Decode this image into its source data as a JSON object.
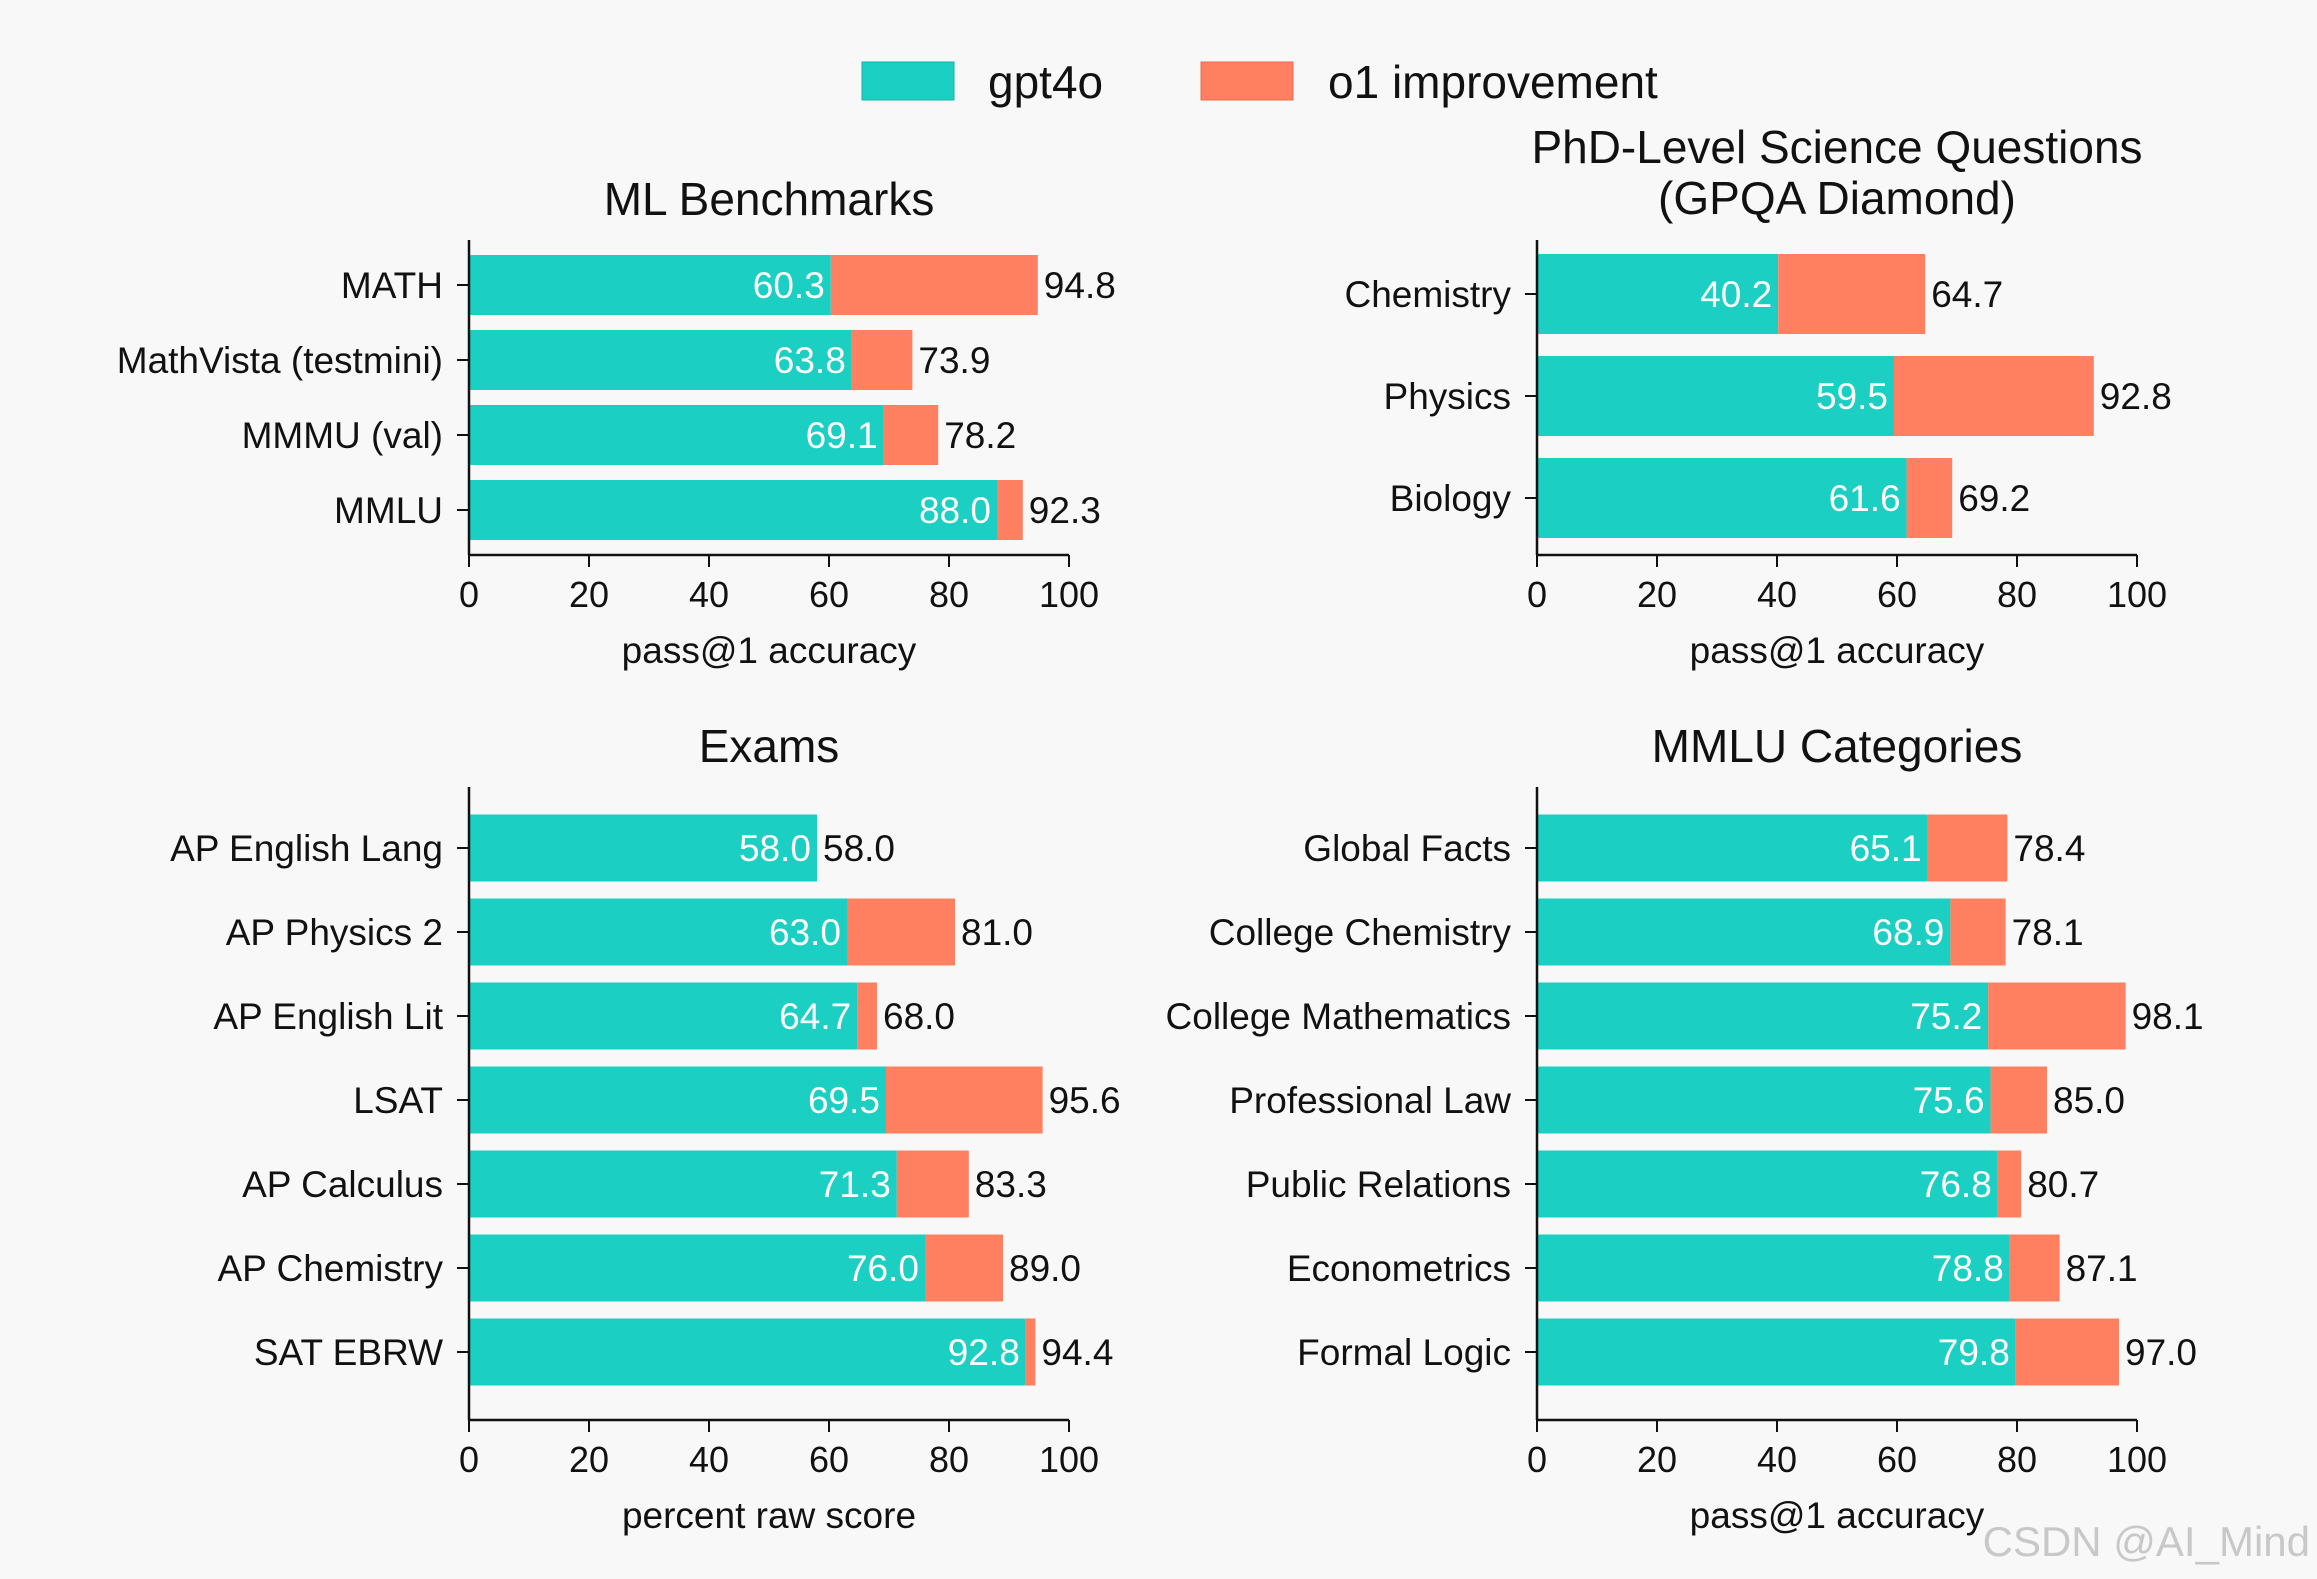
{
  "colors": {
    "base": "#1ccfc3",
    "improvement": "#ff8060",
    "axis": "#111111"
  },
  "legend": {
    "items": [
      "gpt4o",
      "o1 improvement"
    ]
  },
  "watermark": "CSDN @AI_Mind",
  "chart_data": [
    {
      "type": "bar",
      "orientation": "horizontal-stacked",
      "title": [
        "ML Benchmarks"
      ],
      "xlabel": "pass@1 accuracy",
      "xlim": [
        0,
        100
      ],
      "xticks": [
        0,
        20,
        40,
        60,
        80,
        100
      ],
      "categories": [
        "MATH",
        "MathVista (testmini)",
        "MMMU (val)",
        "MMLU"
      ],
      "series": [
        {
          "name": "gpt4o",
          "values": [
            60.3,
            63.8,
            69.1,
            88.0
          ]
        },
        {
          "name": "o1 improvement",
          "values": [
            34.5,
            10.1,
            9.1,
            4.3
          ]
        }
      ],
      "base_labels": [
        "60.3",
        "63.8",
        "69.1",
        "88.0"
      ],
      "total_labels": [
        "94.8",
        "73.9",
        "78.2",
        "92.3"
      ]
    },
    {
      "type": "bar",
      "orientation": "horizontal-stacked",
      "title": [
        "PhD-Level Science Questions",
        "(GPQA Diamond)"
      ],
      "xlabel": "pass@1 accuracy",
      "xlim": [
        0,
        100
      ],
      "xticks": [
        0,
        20,
        40,
        60,
        80,
        100
      ],
      "categories": [
        "Chemistry",
        "Physics",
        "Biology"
      ],
      "series": [
        {
          "name": "gpt4o",
          "values": [
            40.2,
            59.5,
            61.6
          ]
        },
        {
          "name": "o1 improvement",
          "values": [
            24.5,
            33.3,
            7.6
          ]
        }
      ],
      "base_labels": [
        "40.2",
        "59.5",
        "61.6"
      ],
      "total_labels": [
        "64.7",
        "92.8",
        "69.2"
      ]
    },
    {
      "type": "bar",
      "orientation": "horizontal-stacked",
      "title": [
        "Exams"
      ],
      "xlabel": "percent raw score",
      "xlim": [
        0,
        100
      ],
      "xticks": [
        0,
        20,
        40,
        60,
        80,
        100
      ],
      "categories": [
        "AP English Lang",
        "AP Physics 2",
        "AP English Lit",
        "LSAT",
        "AP Calculus",
        "AP Chemistry",
        "SAT EBRW"
      ],
      "series": [
        {
          "name": "gpt4o",
          "values": [
            58.0,
            63.0,
            64.7,
            69.5,
            71.3,
            76.0,
            92.8
          ]
        },
        {
          "name": "o1 improvement",
          "values": [
            0.0,
            18.0,
            3.3,
            26.1,
            12.0,
            13.0,
            1.6
          ]
        }
      ],
      "base_labels": [
        "58.0",
        "63.0",
        "64.7",
        "69.5",
        "71.3",
        "76.0",
        "92.8"
      ],
      "total_labels": [
        "58.0",
        "81.0",
        "68.0",
        "95.6",
        "83.3",
        "89.0",
        "94.4"
      ]
    },
    {
      "type": "bar",
      "orientation": "horizontal-stacked",
      "title": [
        "MMLU Categories"
      ],
      "xlabel": "pass@1 accuracy",
      "xlim": [
        0,
        100
      ],
      "xticks": [
        0,
        20,
        40,
        60,
        80,
        100
      ],
      "categories": [
        "Global Facts",
        "College Chemistry",
        "College Mathematics",
        "Professional Law",
        "Public Relations",
        "Econometrics",
        "Formal Logic"
      ],
      "series": [
        {
          "name": "gpt4o",
          "values": [
            65.1,
            68.9,
            75.2,
            75.6,
            76.8,
            78.8,
            79.8
          ]
        },
        {
          "name": "o1 improvement",
          "values": [
            13.3,
            9.2,
            22.9,
            9.4,
            3.9,
            8.3,
            17.2
          ]
        }
      ],
      "base_labels": [
        "65.1",
        "68.9",
        "75.2",
        "75.6",
        "76.8",
        "78.8",
        "79.8"
      ],
      "total_labels": [
        "78.4",
        "78.1",
        "98.1",
        "85.0",
        "80.7",
        "87.1",
        "97.0"
      ]
    }
  ]
}
